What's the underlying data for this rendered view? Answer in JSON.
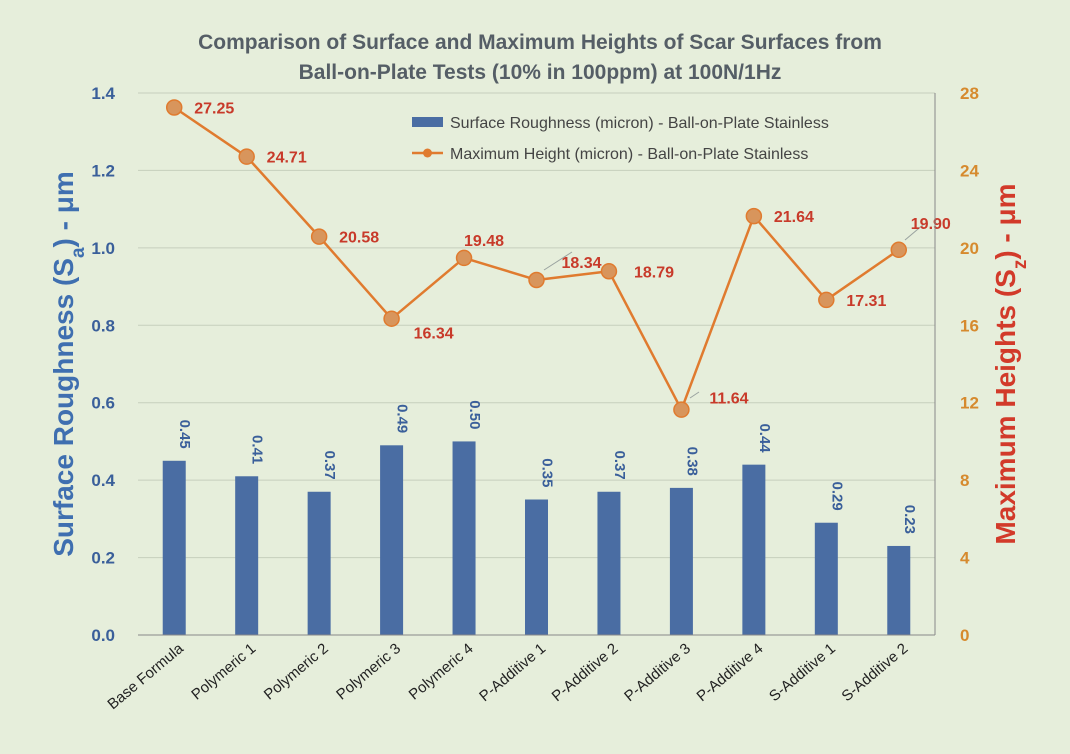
{
  "chart_data": {
    "type": "bar",
    "title_line1": "Comparison of Surface and Maximum Heights of Scar Surfaces from",
    "title_line2": "Ball-on-Plate Tests (10% in 100ppm) at 100N/1Hz",
    "ylabel_left_main": "Surface Roughness (S",
    "ylabel_left_sub": "a",
    "ylabel_left_tail": ") - μm",
    "ylabel_right_main": "Maximum Heights (S",
    "ylabel_right_sub": "z",
    "ylabel_right_tail": ") - μm",
    "categories": [
      "Base Formula",
      "Polymeric 1",
      "Polymeric 2",
      "Polymeric 3",
      "Polymeric 4",
      "P-Additive 1",
      "P-Additive 2",
      "P-Additive 3",
      "P-Additive 4",
      "S-Additive 1",
      "S-Additive 2"
    ],
    "ylim_left": [
      0,
      1.4
    ],
    "yticks_left": [
      "0.0",
      "0.2",
      "0.4",
      "0.6",
      "0.8",
      "1.0",
      "1.2",
      "1.4"
    ],
    "ylim_right": [
      0,
      28
    ],
    "yticks_right": [
      "0",
      "4",
      "8",
      "12",
      "16",
      "20",
      "24",
      "28"
    ],
    "grid": true,
    "legend_position": "top-right",
    "series": [
      {
        "name": "Surface Roughness (micron) - Ball-on-Plate Stainless",
        "type": "bar",
        "axis": "left",
        "color": "#4a6da3",
        "values": [
          0.45,
          0.41,
          0.37,
          0.49,
          0.5,
          0.35,
          0.37,
          0.38,
          0.44,
          0.29,
          0.23
        ],
        "labels": [
          "0.45",
          "0.41",
          "0.37",
          "0.49",
          "0.50",
          "0.35",
          "0.37",
          "0.38",
          "0.44",
          "0.29",
          "0.23"
        ]
      },
      {
        "name": "Maximum Height (micron) - Ball-on-Plate Stainless",
        "type": "line",
        "axis": "right",
        "color": "#e07b2f",
        "values": [
          27.25,
          24.71,
          20.58,
          16.34,
          19.48,
          18.34,
          18.79,
          11.64,
          21.64,
          17.31,
          19.9
        ],
        "labels": [
          "27.25",
          "24.71",
          "20.58",
          "16.34",
          "19.48",
          "18.34",
          "18.79",
          "11.64",
          "21.64",
          "17.31",
          "19.90"
        ]
      }
    ]
  }
}
